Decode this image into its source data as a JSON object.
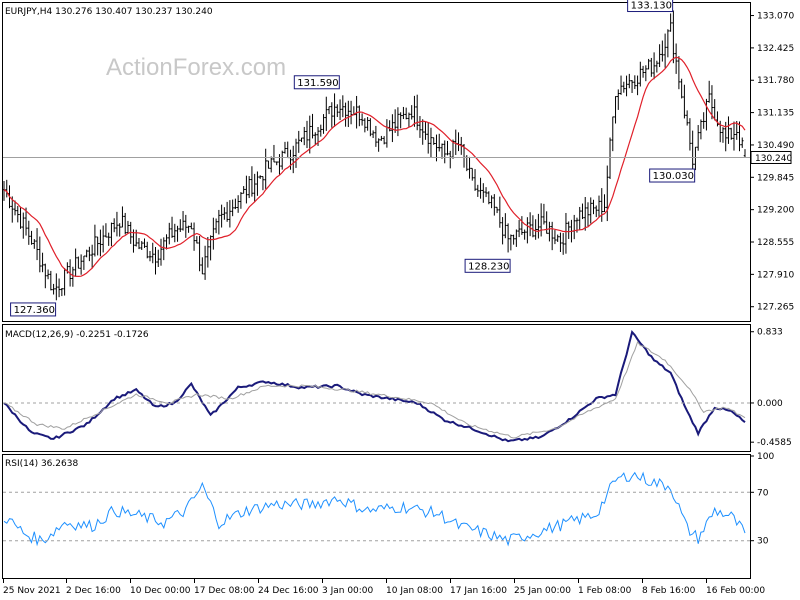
{
  "watermark": "ActionForex.com",
  "main": {
    "header": "EURJPY,H4  130.276 130.407 130.237 130.240",
    "y_ticks": [
      "133.070",
      "132.425",
      "131.780",
      "131.135",
      "130.490",
      "129.845",
      "129.200",
      "128.555",
      "127.910",
      "127.265"
    ],
    "current_price": "130.240",
    "annotations": [
      {
        "text": "133.130",
        "price": 133.13,
        "bar": 242
      },
      {
        "text": "131.590",
        "price": 131.59,
        "bar": 121
      },
      {
        "text": "130.030",
        "price": 130.03,
        "bar": 250
      },
      {
        "text": "128.230",
        "price": 128.23,
        "bar": 183
      },
      {
        "text": "127.360",
        "price": 127.36,
        "bar": 18
      }
    ]
  },
  "macd": {
    "header": "MACD(12,26,9) -0.2251 -0.1726",
    "y_ticks": [
      "0.833",
      "0.000",
      "-0.4585"
    ]
  },
  "rsi": {
    "header": "RSI(14) 36.2638",
    "y_ticks": [
      "100",
      "70",
      "30"
    ]
  },
  "x_ticks": [
    "25 Nov 2021",
    "2 Dec 16:00",
    "10 Dec 00:00",
    "17 Dec 08:00",
    "24 Dec 16:00",
    "3 Jan 00:00",
    "10 Jan 08:00",
    "17 Jan 16:00",
    "25 Jan 00:00",
    "1 Feb 08:00",
    "8 Feb 16:00",
    "16 Feb 00:00"
  ],
  "colors": {
    "ma": "#e0202a",
    "macd": "#1a1a7a",
    "signal": "#a0a0a0",
    "rsi": "#1e90ff",
    "bars": "#000000"
  },
  "chart_data": [
    {
      "type": "bar",
      "subtype": "ohlc",
      "symbol": "EURJPY",
      "timeframe": "H4",
      "last_ohlc": {
        "open": 130.276,
        "high": 130.407,
        "low": 130.237,
        "close": 130.24
      },
      "ylim": [
        127.0,
        133.3
      ],
      "bars_count": 270,
      "anchor_closes": [
        [
          0,
          129.6
        ],
        [
          10,
          128.6
        ],
        [
          18,
          127.6
        ],
        [
          28,
          128.2
        ],
        [
          35,
          128.6
        ],
        [
          42,
          129.0
        ],
        [
          48,
          128.5
        ],
        [
          55,
          128.3
        ],
        [
          62,
          128.8
        ],
        [
          68,
          128.9
        ],
        [
          72,
          128.0
        ],
        [
          78,
          129.0
        ],
        [
          85,
          129.4
        ],
        [
          95,
          130.0
        ],
        [
          105,
          130.4
        ],
        [
          112,
          130.8
        ],
        [
          121,
          131.3
        ],
        [
          130,
          131.1
        ],
        [
          136,
          130.6
        ],
        [
          142,
          130.9
        ],
        [
          148,
          131.2
        ],
        [
          155,
          130.6
        ],
        [
          160,
          130.3
        ],
        [
          165,
          130.5
        ],
        [
          170,
          129.7
        ],
        [
          178,
          129.2
        ],
        [
          183,
          128.6
        ],
        [
          190,
          128.8
        ],
        [
          196,
          128.9
        ],
        [
          202,
          128.6
        ],
        [
          208,
          129.1
        ],
        [
          214,
          129.2
        ],
        [
          218,
          129.3
        ],
        [
          222,
          131.6
        ],
        [
          228,
          131.8
        ],
        [
          236,
          132.1
        ],
        [
          242,
          132.8
        ],
        [
          246,
          131.5
        ],
        [
          250,
          130.2
        ],
        [
          256,
          131.4
        ],
        [
          262,
          130.6
        ],
        [
          266,
          130.8
        ],
        [
          269,
          130.24
        ]
      ],
      "indicators": [
        {
          "name": "Moving Average"
        }
      ]
    },
    {
      "type": "line",
      "title": "MACD(12,26,9) -0.2251 -0.1726",
      "ylim": [
        -0.55,
        0.9
      ],
      "series": [
        {
          "name": "MACD",
          "anchors": [
            [
              0,
              0.0
            ],
            [
              10,
              -0.35
            ],
            [
              18,
              -0.42
            ],
            [
              30,
              -0.25
            ],
            [
              40,
              0.05
            ],
            [
              48,
              0.15
            ],
            [
              55,
              -0.05
            ],
            [
              62,
              0.0
            ],
            [
              68,
              0.22
            ],
            [
              75,
              -0.15
            ],
            [
              85,
              0.18
            ],
            [
              95,
              0.25
            ],
            [
              108,
              0.18
            ],
            [
              121,
              0.2
            ],
            [
              130,
              0.1
            ],
            [
              140,
              0.05
            ],
            [
              150,
              0.0
            ],
            [
              160,
              -0.2
            ],
            [
              170,
              -0.3
            ],
            [
              183,
              -0.45
            ],
            [
              195,
              -0.4
            ],
            [
              205,
              -0.2
            ],
            [
              215,
              0.05
            ],
            [
              222,
              0.1
            ],
            [
              228,
              0.82
            ],
            [
              236,
              0.5
            ],
            [
              242,
              0.35
            ],
            [
              248,
              -0.1
            ],
            [
              252,
              -0.35
            ],
            [
              258,
              -0.05
            ],
            [
              264,
              -0.1
            ],
            [
              269,
              -0.2251
            ]
          ]
        },
        {
          "name": "Signal",
          "anchors": [
            [
              0,
              0.0
            ],
            [
              12,
              -0.25
            ],
            [
              22,
              -0.3
            ],
            [
              35,
              -0.1
            ],
            [
              48,
              0.1
            ],
            [
              60,
              0.0
            ],
            [
              70,
              0.1
            ],
            [
              82,
              0.05
            ],
            [
              95,
              0.2
            ],
            [
              110,
              0.2
            ],
            [
              125,
              0.15
            ],
            [
              140,
              0.08
            ],
            [
              155,
              0.0
            ],
            [
              168,
              -0.25
            ],
            [
              185,
              -0.4
            ],
            [
              200,
              -0.3
            ],
            [
              212,
              -0.1
            ],
            [
              222,
              0.05
            ],
            [
              230,
              0.7
            ],
            [
              240,
              0.5
            ],
            [
              248,
              0.2
            ],
            [
              254,
              -0.1
            ],
            [
              262,
              -0.05
            ],
            [
              269,
              -0.1726
            ]
          ]
        }
      ]
    },
    {
      "type": "line",
      "title": "RSI(14) 36.2638",
      "ylim": [
        0,
        100
      ],
      "series": [
        {
          "name": "RSI",
          "anchors": [
            [
              0,
              50
            ],
            [
              8,
              35
            ],
            [
              14,
              30
            ],
            [
              22,
              45
            ],
            [
              32,
              42
            ],
            [
              40,
              55
            ],
            [
              50,
              50
            ],
            [
              58,
              45
            ],
            [
              66,
              55
            ],
            [
              72,
              75
            ],
            [
              78,
              45
            ],
            [
              88,
              55
            ],
            [
              98,
              60
            ],
            [
              112,
              60
            ],
            [
              121,
              65
            ],
            [
              132,
              55
            ],
            [
              145,
              58
            ],
            [
              158,
              52
            ],
            [
              165,
              42
            ],
            [
              172,
              38
            ],
            [
              183,
              30
            ],
            [
              195,
              38
            ],
            [
              205,
              45
            ],
            [
              215,
              52
            ],
            [
              222,
              80
            ],
            [
              228,
              85
            ],
            [
              236,
              78
            ],
            [
              242,
              75
            ],
            [
              248,
              40
            ],
            [
              252,
              32
            ],
            [
              258,
              55
            ],
            [
              264,
              50
            ],
            [
              269,
              36.26
            ]
          ]
        }
      ]
    }
  ]
}
